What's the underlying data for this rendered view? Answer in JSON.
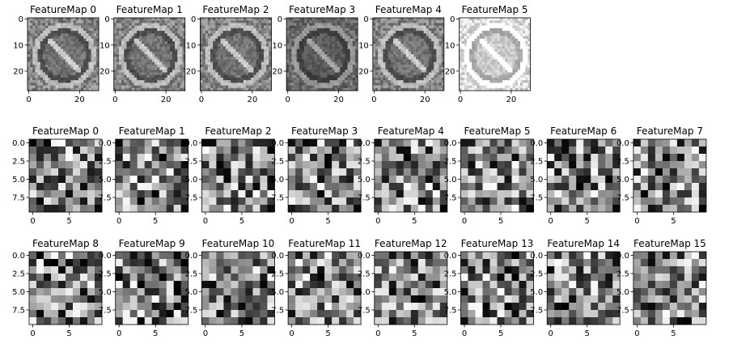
{
  "chart_data": {
    "type": "heatmap",
    "colormap": "gray",
    "rows": [
      {
        "titles": [
          "FeatureMap 0",
          "FeatureMap 1",
          "FeatureMap 2",
          "FeatureMap 3",
          "FeatureMap 4",
          "FeatureMap 5"
        ],
        "grid_size": 28,
        "xticks": [
          0,
          20
        ],
        "yticks": [
          0,
          10,
          20
        ]
      },
      {
        "titles": [
          "FeatureMap 0",
          "FeatureMap 1",
          "FeatureMap 2",
          "FeatureMap 3",
          "FeatureMap 4",
          "FeatureMap 5",
          "FeatureMap 6",
          "FeatureMap 7"
        ],
        "grid_size": 10,
        "xticks": [
          0,
          5
        ],
        "yticks": [
          0.0,
          2.5,
          5.0,
          7.5
        ]
      },
      {
        "titles": [
          "FeatureMap 8",
          "FeatureMap 9",
          "FeatureMap 10",
          "FeatureMap 11",
          "FeatureMap 12",
          "FeatureMap 13",
          "FeatureMap 14",
          "FeatureMap 15"
        ],
        "grid_size": 10,
        "xticks": [
          0,
          5
        ],
        "yticks": [
          0.0,
          2.5,
          5.0,
          7.5
        ]
      }
    ]
  }
}
